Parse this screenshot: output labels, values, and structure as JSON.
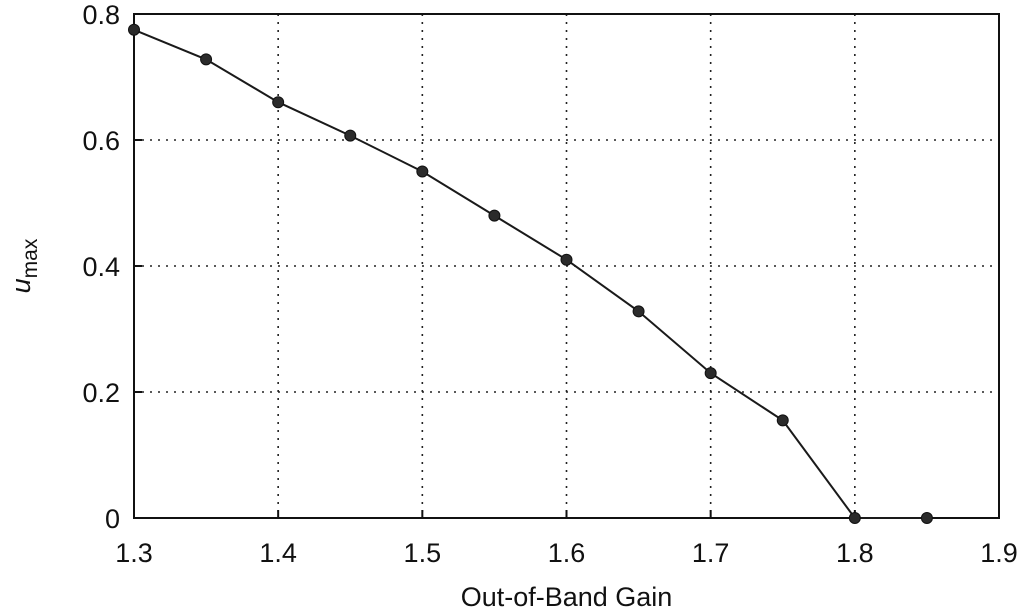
{
  "chart_data": {
    "type": "line",
    "xlabel": "Out-of-Band Gain",
    "ylabel_main": "u",
    "ylabel_sub": "max",
    "xlim": [
      1.3,
      1.9
    ],
    "ylim": [
      0,
      0.8
    ],
    "x_ticks": [
      "1.3",
      "1.4",
      "1.5",
      "1.6",
      "1.7",
      "1.8",
      "1.9"
    ],
    "y_ticks": [
      "0",
      "0.2",
      "0.4",
      "0.6",
      "0.8"
    ],
    "x_tick_values": [
      1.3,
      1.4,
      1.5,
      1.6,
      1.7,
      1.8,
      1.9
    ],
    "y_tick_values": [
      0,
      0.2,
      0.4,
      0.6,
      0.8
    ],
    "grid": true,
    "series": [
      {
        "x": [
          1.3,
          1.35,
          1.4,
          1.45,
          1.5,
          1.55,
          1.6,
          1.65,
          1.7,
          1.75,
          1.8,
          1.85
        ],
        "y": [
          0.775,
          0.728,
          0.66,
          0.607,
          0.55,
          0.48,
          0.41,
          0.328,
          0.23,
          0.155,
          0.0,
          0.0
        ]
      }
    ]
  }
}
